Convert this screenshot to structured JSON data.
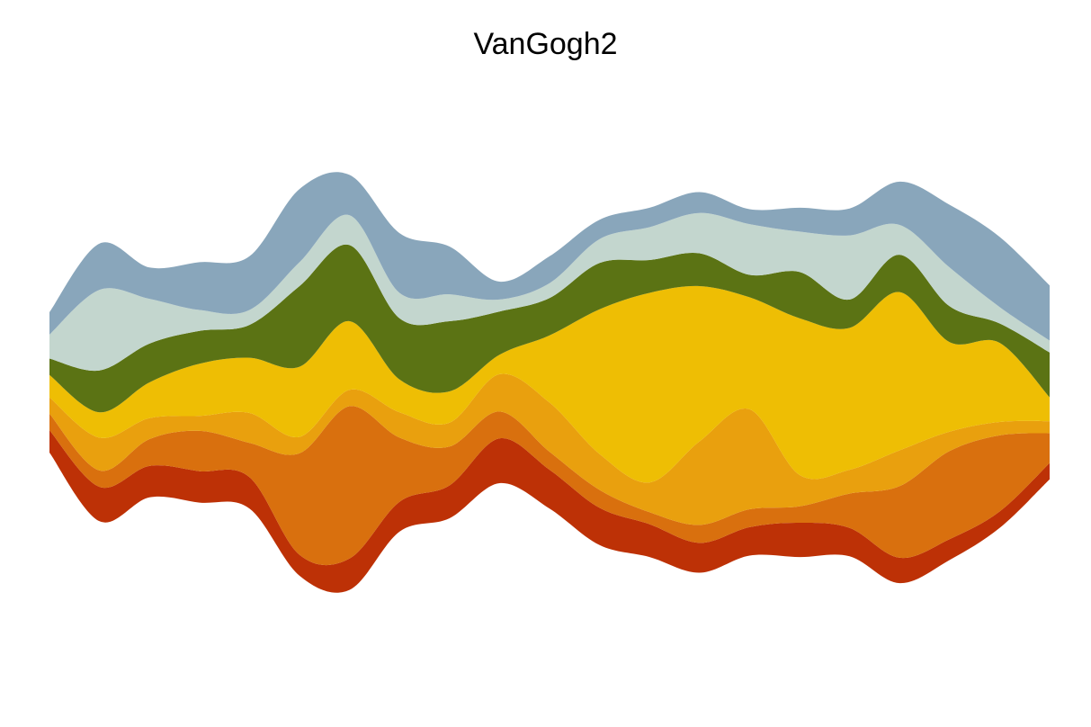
{
  "chart_data": {
    "type": "area",
    "subtype": "streamgraph",
    "title": "VanGogh2",
    "xlabel": "",
    "ylabel": "",
    "axes_visible": false,
    "grid": false,
    "legend": "none",
    "x": [
      0,
      1,
      2,
      3,
      4,
      5,
      6,
      7,
      8,
      9,
      10,
      11,
      12,
      13,
      14,
      15,
      16,
      17,
      18,
      19,
      20
    ],
    "ylim": [
      -22,
      22
    ],
    "series": [
      {
        "color": "#BD3106",
        "values": [
          1.5,
          2.3,
          2.1,
          2.1,
          2.1,
          1.4,
          2.1,
          2.0,
          2.2,
          3.0,
          2.6,
          2.5,
          2.2,
          2.0,
          1.9,
          2.3,
          1.9,
          1.7,
          1.4,
          1.1,
          1.1
        ]
      },
      {
        "color": "#D9700E",
        "values": [
          1.1,
          1.1,
          1.8,
          2.7,
          2.3,
          6.8,
          10.2,
          4.3,
          2.6,
          1.8,
          1.2,
          1.2,
          0.8,
          1.2,
          1.2,
          1.1,
          2.3,
          4.8,
          5.9,
          5.1,
          2.0
        ]
      },
      {
        "color": "#E9A00E",
        "values": [
          1.1,
          2.2,
          1.4,
          1.0,
          2.0,
          1.1,
          1.1,
          1.7,
          1.6,
          2.5,
          3.3,
          2.4,
          2.0,
          5.6,
          6.7,
          2.1,
          1.6,
          2.4,
          1.3,
          0.9,
          0.8
        ]
      },
      {
        "color": "#EEBE04",
        "values": [
          1.5,
          1.7,
          2.4,
          3.5,
          3.7,
          4.7,
          4.6,
          2.2,
          2.1,
          1.3,
          4.5,
          9.7,
          12.7,
          10.4,
          7.5,
          10.5,
          9.5,
          10.6,
          6.0,
          5.3,
          1.6
        ]
      },
      {
        "color": "#5B7314",
        "values": [
          1.1,
          2.8,
          2.6,
          2.2,
          2.2,
          5.4,
          5.1,
          4.1,
          4.7,
          2.9,
          2.5,
          3.1,
          2.2,
          2.2,
          1.5,
          3.1,
          1.9,
          2.5,
          2.4,
          1.3,
          3.0
        ]
      },
      {
        "color": "#C3D6CE",
        "values": [
          1.6,
          5.4,
          3.0,
          1.4,
          1.0,
          1.6,
          2.0,
          1.7,
          1.8,
          0.8,
          1.0,
          1.6,
          2.2,
          2.7,
          3.4,
          2.7,
          4.3,
          2.0,
          2.6,
          1.1,
          0.8
        ]
      },
      {
        "color": "#89A6BB",
        "values": [
          1.5,
          3.1,
          2.1,
          3.2,
          3.6,
          4.9,
          2.7,
          4.0,
          3.2,
          1.2,
          1.8,
          1.3,
          1.3,
          1.4,
          1.0,
          1.6,
          1.8,
          2.9,
          4.2,
          4.7,
          3.7
        ]
      }
    ]
  }
}
